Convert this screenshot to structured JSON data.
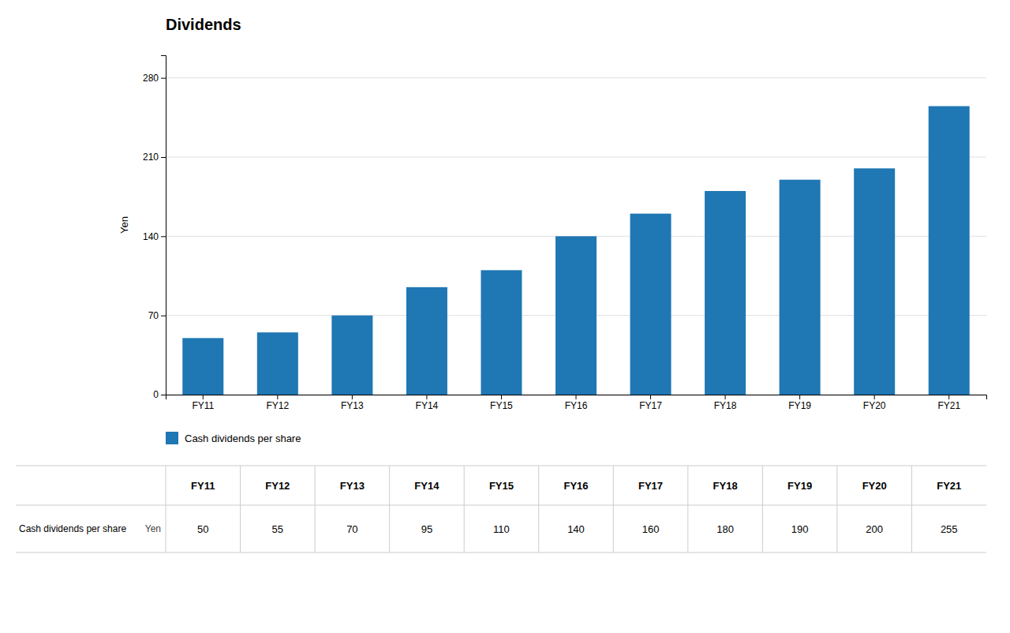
{
  "chart_data": {
    "type": "bar",
    "title": "Dividends",
    "ylabel": "Yen",
    "categories": [
      "FY11",
      "FY12",
      "FY13",
      "FY14",
      "FY15",
      "FY16",
      "FY17",
      "FY18",
      "FY19",
      "FY20",
      "FY21"
    ],
    "series": [
      {
        "name": "Cash dividends per share",
        "values": [
          50,
          55,
          70,
          95,
          110,
          140,
          160,
          180,
          190,
          200,
          255
        ]
      }
    ],
    "ylim": [
      0,
      300
    ],
    "yticks": [
      0,
      70,
      140,
      210,
      280
    ],
    "grid": true,
    "legend": "bottom",
    "table": {
      "row_label": "Cash dividends per share",
      "unit_label": "Yen"
    }
  }
}
